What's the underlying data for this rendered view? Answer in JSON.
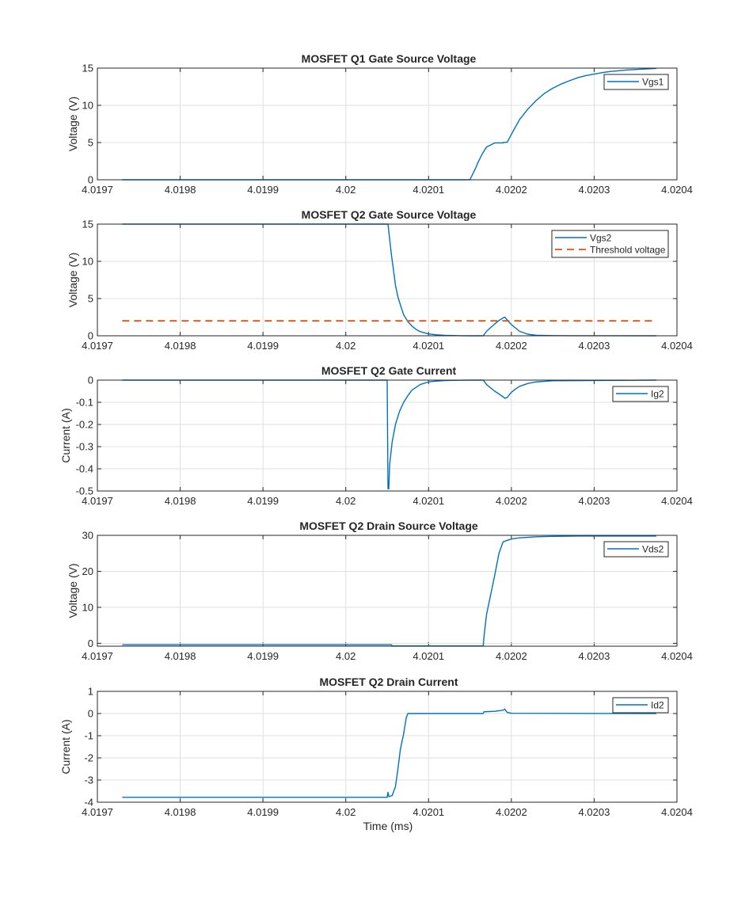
{
  "figure": {
    "xlabel": "Time (ms)"
  },
  "chart_data": [
    {
      "type": "line",
      "title": "MOSFET Q1 Gate Source Voltage",
      "xlabel": "",
      "ylabel": "Voltage (V)",
      "xlim": [
        4.0197,
        4.0204
      ],
      "ylim": [
        0,
        15
      ],
      "xticks": [
        "4.0197",
        "4.0198",
        "4.0199",
        "4.02",
        "4.0201",
        "4.0202",
        "4.0203",
        "4.0204"
      ],
      "yticks": [
        "0",
        "5",
        "10",
        "15"
      ],
      "grid": true,
      "legend_position": "top-right",
      "series": [
        {
          "name": "Vgs1",
          "color": "#0072BD",
          "dash": "solid",
          "x": [
            4.01973,
            4.02015,
            4.020153,
            4.020157,
            4.02016,
            4.020165,
            4.02017,
            4.020179,
            4.02018,
            4.02019,
            4.02019,
            4.020195,
            4.0202,
            4.020205,
            4.02021,
            4.02022,
            4.02023,
            4.02024,
            4.02025,
            4.02026,
            4.02027,
            4.02028,
            4.02029,
            4.0203,
            4.02031,
            4.02032,
            4.02033,
            4.02034,
            4.020355,
            4.020375
          ],
          "y": [
            0,
            0,
            0.7,
            1.6,
            2.4,
            3.5,
            4.4,
            4.9,
            4.95,
            4.95,
            5.0,
            5.05,
            6.1,
            7.1,
            8.1,
            9.5,
            10.65,
            11.6,
            12.3,
            12.85,
            13.3,
            13.7,
            14.0,
            14.2,
            14.4,
            14.55,
            14.65,
            14.75,
            14.85,
            14.95
          ]
        }
      ]
    },
    {
      "type": "line",
      "title": "MOSFET Q2 Gate Source Voltage",
      "xlabel": "",
      "ylabel": "Voltage (V)",
      "xlim": [
        4.0197,
        4.0204
      ],
      "ylim": [
        0,
        15
      ],
      "xticks": [
        "4.0197",
        "4.0198",
        "4.0199",
        "4.02",
        "4.0201",
        "4.0202",
        "4.0203",
        "4.0204"
      ],
      "yticks": [
        "0",
        "5",
        "10",
        "15"
      ],
      "grid": true,
      "legend_position": "top-right",
      "series": [
        {
          "name": "Vgs2",
          "color": "#0072BD",
          "dash": "solid",
          "x": [
            4.01973,
            4.020051,
            4.020052,
            4.020055,
            4.020058,
            4.02006,
            4.020063,
            4.020067,
            4.02007,
            4.020075,
            4.02008,
            4.020085,
            4.02009,
            4.0201,
            4.02011,
            4.02012,
            4.02013,
            4.02014,
            4.02015,
            4.020166,
            4.02017,
            4.020175,
            4.02018,
            4.020185,
            4.02019,
            4.020192,
            4.0202,
            4.02021,
            4.02022,
            4.02023,
            4.02025,
            4.02028,
            4.020375
          ],
          "y": [
            15,
            15,
            14.0,
            11.0,
            8.5,
            6.8,
            5.2,
            3.8,
            2.8,
            1.9,
            1.3,
            0.85,
            0.55,
            0.25,
            0.12,
            0.06,
            0.03,
            0.01,
            0,
            0,
            0.6,
            1.1,
            1.6,
            2.05,
            2.4,
            2.5,
            1.5,
            0.6,
            0.2,
            0.07,
            0.02,
            0.01,
            0
          ]
        },
        {
          "name": "Threshold voltage",
          "color": "#D95319",
          "dash": "dashed",
          "x": [
            4.01973,
            4.020375
          ],
          "y": [
            2,
            2
          ]
        }
      ]
    },
    {
      "type": "line",
      "title": "MOSFET Q2 Gate Current",
      "xlabel": "",
      "ylabel": "Current (A)",
      "xlim": [
        4.0197,
        4.0204
      ],
      "ylim": [
        -0.5,
        0
      ],
      "xticks": [
        "4.0197",
        "4.0198",
        "4.0199",
        "4.02",
        "4.0201",
        "4.0202",
        "4.0203",
        "4.0204"
      ],
      "yticks": [
        "-0.5",
        "-0.4",
        "-0.3",
        "-0.2",
        "-0.1",
        "0"
      ],
      "grid": true,
      "legend_position": "top-right",
      "series": [
        {
          "name": "Ig2",
          "color": "#0072BD",
          "dash": "solid",
          "x": [
            4.01973,
            4.02005,
            4.020051,
            4.020052,
            4.020053,
            4.020056,
            4.02006,
            4.020065,
            4.02007,
            4.020075,
            4.02008,
            4.02009,
            4.0201,
            4.02011,
            4.02012,
            4.02013,
            4.02015,
            4.020166,
            4.02017,
            4.02018,
            4.02019,
            4.020192,
            4.020195,
            4.0202,
            4.020205,
            4.02021,
            4.02022,
            4.02023,
            4.02025,
            4.020375
          ],
          "y": [
            0,
            0,
            -0.49,
            -0.49,
            -0.38,
            -0.28,
            -0.2,
            -0.14,
            -0.1,
            -0.07,
            -0.045,
            -0.02,
            -0.008,
            -0.004,
            -0.002,
            -0.001,
            0,
            0,
            -0.02,
            -0.05,
            -0.075,
            -0.082,
            -0.078,
            -0.055,
            -0.04,
            -0.028,
            -0.015,
            -0.008,
            -0.003,
            0
          ]
        }
      ]
    },
    {
      "type": "line",
      "title": "MOSFET Q2 Drain Source Voltage",
      "xlabel": "",
      "ylabel": "Voltage (V)",
      "xlim": [
        4.0197,
        4.0204
      ],
      "ylim": [
        -0.8,
        30
      ],
      "xticks": [
        "4.0197",
        "4.0198",
        "4.0199",
        "4.02",
        "4.0201",
        "4.0202",
        "4.0203",
        "4.0204"
      ],
      "yticks": [
        "0",
        "10",
        "20",
        "30"
      ],
      "grid": true,
      "legend_position": "top-right",
      "series": [
        {
          "name": "Vds2",
          "color": "#0072BD",
          "dash": "solid",
          "x": [
            4.01973,
            4.020055,
            4.020056,
            4.020166,
            4.020167,
            4.02017,
            4.02018,
            4.020185,
            4.02019,
            4.0202,
            4.02021,
            4.02023,
            4.02025,
            4.02028,
            4.020375
          ],
          "y": [
            -0.4,
            -0.4,
            -0.7,
            -0.7,
            2.0,
            8.0,
            19.0,
            25.0,
            28.2,
            29.0,
            29.3,
            29.6,
            29.7,
            29.8,
            29.8
          ]
        }
      ]
    },
    {
      "type": "line",
      "title": "MOSFET Q2 Drain Current",
      "xlabel": "Time (ms)",
      "ylabel": "Current (A)",
      "xlim": [
        4.0197,
        4.0204
      ],
      "ylim": [
        -4,
        1
      ],
      "xticks": [
        "4.0197",
        "4.0198",
        "4.0199",
        "4.02",
        "4.0201",
        "4.0202",
        "4.0203",
        "4.0204"
      ],
      "yticks": [
        "-4",
        "-3",
        "-2",
        "-1",
        "0",
        "1"
      ],
      "grid": true,
      "legend_position": "top-right",
      "series": [
        {
          "name": "Id2",
          "color": "#0072BD",
          "dash": "solid",
          "x": [
            4.01973,
            4.02005,
            4.020051,
            4.020052,
            4.020056,
            4.02006,
            4.020063,
            4.020066,
            4.02007,
            4.020073,
            4.020075,
            4.02008,
            4.02009,
            4.020166,
            4.020167,
            4.02018,
            4.02019,
            4.020192,
            4.020195,
            4.0202,
            4.020375
          ],
          "y": [
            -3.78,
            -3.78,
            -3.55,
            -3.75,
            -3.7,
            -3.3,
            -2.5,
            -1.6,
            -0.9,
            -0.2,
            0,
            0,
            0,
            0,
            0.08,
            0.1,
            0.15,
            0.2,
            0.05,
            0.01,
            0
          ]
        }
      ]
    }
  ]
}
